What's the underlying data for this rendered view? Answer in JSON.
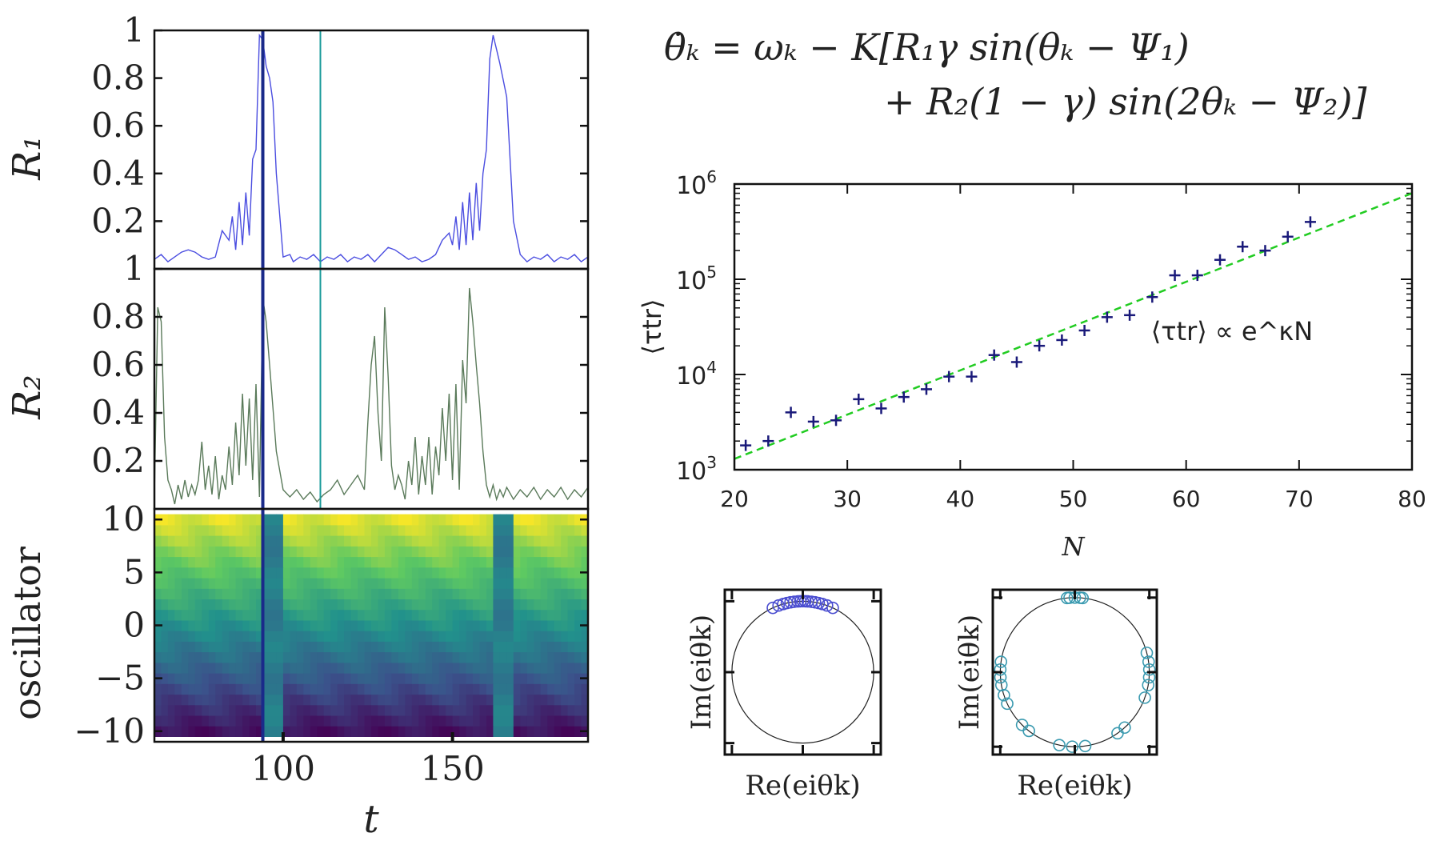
{
  "equation": {
    "line1": "θ̇ₖ = ωₖ − K[R₁γ sin(θₖ − Ψ₁)",
    "line2": "+ R₂(1 − γ) sin(2θₖ − Ψ₂)]"
  },
  "chart_data": [
    {
      "type": "line",
      "panel": "R1 time series",
      "xlabel": "",
      "ylabel": "R₁",
      "xlim": [
        62,
        190
      ],
      "ylim": [
        0,
        1
      ],
      "yticks": [
        {
          "v": 0.2,
          "label": "0.2"
        },
        {
          "v": 0.4,
          "label": "0.4"
        },
        {
          "v": 0.6,
          "label": "0.6"
        },
        {
          "v": 0.8,
          "label": "0.8"
        },
        {
          "v": 1.0,
          "label": "1"
        }
      ],
      "markers": [
        {
          "x": 94,
          "color": "#1a2a8a"
        },
        {
          "x": 111,
          "color": "#1a9a9a"
        }
      ],
      "series": [
        {
          "color": "#4a4de0",
          "x": [
            62,
            64,
            66,
            68,
            70,
            72,
            74,
            76,
            78,
            80,
            82,
            84,
            85,
            86,
            87,
            88,
            89,
            90,
            91,
            92,
            93,
            94,
            95,
            96,
            97,
            98,
            100,
            102,
            103,
            105,
            107,
            109,
            111,
            113,
            115,
            117,
            119,
            121,
            123,
            125,
            127,
            129,
            131,
            133,
            135,
            137,
            139,
            141,
            143,
            145,
            147,
            149,
            150,
            151,
            152,
            153,
            154,
            155,
            156,
            157,
            158,
            159,
            160,
            161,
            162,
            163,
            164,
            166,
            168,
            170,
            172,
            174,
            176,
            178,
            180,
            182,
            184,
            186,
            188,
            190
          ],
          "y": [
            0.04,
            0.06,
            0.03,
            0.05,
            0.07,
            0.08,
            0.07,
            0.05,
            0.04,
            0.05,
            0.16,
            0.12,
            0.22,
            0.08,
            0.28,
            0.1,
            0.32,
            0.14,
            0.46,
            0.5,
            0.98,
            0.96,
            0.85,
            0.8,
            0.7,
            0.4,
            0.05,
            0.06,
            0.03,
            0.05,
            0.04,
            0.06,
            0.03,
            0.05,
            0.04,
            0.06,
            0.03,
            0.05,
            0.04,
            0.06,
            0.03,
            0.06,
            0.09,
            0.08,
            0.06,
            0.04,
            0.05,
            0.03,
            0.04,
            0.06,
            0.12,
            0.15,
            0.1,
            0.22,
            0.08,
            0.28,
            0.1,
            0.32,
            0.12,
            0.36,
            0.16,
            0.4,
            0.5,
            0.88,
            0.98,
            0.92,
            0.86,
            0.72,
            0.2,
            0.06,
            0.03,
            0.05,
            0.04,
            0.06,
            0.03,
            0.05,
            0.04,
            0.06,
            0.03,
            0.05
          ]
        }
      ]
    },
    {
      "type": "line",
      "panel": "R2 time series",
      "xlabel": "",
      "ylabel": "R₂",
      "xlim": [
        62,
        190
      ],
      "ylim": [
        0,
        1
      ],
      "yticks": [
        {
          "v": 0.2,
          "label": "0.2"
        },
        {
          "v": 0.4,
          "label": "0.4"
        },
        {
          "v": 0.6,
          "label": "0.6"
        },
        {
          "v": 0.8,
          "label": "0.8"
        },
        {
          "v": 1.0,
          "label": "1"
        }
      ],
      "markers": [
        {
          "x": 94,
          "color": "#1a2a8a"
        },
        {
          "x": 111,
          "color": "#1a9a9a"
        }
      ],
      "series": [
        {
          "color": "#5a7a5a",
          "x": [
            62,
            63,
            64,
            65,
            66,
            67,
            68,
            69,
            70,
            71,
            72,
            73,
            74,
            75,
            76,
            77,
            78,
            79,
            80,
            81,
            82,
            83,
            84,
            85,
            86,
            87,
            88,
            89,
            90,
            91,
            92,
            93,
            94,
            95,
            96,
            97,
            98,
            100,
            102,
            104,
            106,
            108,
            110,
            112,
            114,
            116,
            118,
            120,
            122,
            124,
            125,
            126,
            127,
            128,
            129,
            130,
            131,
            132,
            133,
            134,
            135,
            136,
            137,
            138,
            139,
            140,
            141,
            142,
            143,
            144,
            145,
            146,
            147,
            148,
            149,
            150,
            151,
            152,
            153,
            154,
            155,
            156,
            157,
            158,
            159,
            160,
            161,
            162,
            163,
            164,
            165,
            166,
            168,
            170,
            172,
            174,
            176,
            178,
            180,
            182,
            184,
            186,
            188,
            190
          ],
          "y": [
            0.05,
            0.84,
            0.78,
            0.3,
            0.12,
            0.08,
            0.02,
            0.1,
            0.04,
            0.12,
            0.05,
            0.1,
            0.06,
            0.12,
            0.28,
            0.08,
            0.18,
            0.06,
            0.22,
            0.04,
            0.14,
            0.08,
            0.26,
            0.1,
            0.36,
            0.14,
            0.48,
            0.18,
            0.46,
            0.12,
            0.52,
            0.05,
            0.88,
            0.78,
            0.6,
            0.42,
            0.24,
            0.08,
            0.05,
            0.08,
            0.04,
            0.07,
            0.03,
            0.06,
            0.08,
            0.12,
            0.06,
            0.1,
            0.14,
            0.08,
            0.36,
            0.6,
            0.72,
            0.4,
            0.2,
            0.84,
            0.55,
            0.18,
            0.08,
            0.14,
            0.1,
            0.04,
            0.2,
            0.1,
            0.3,
            0.06,
            0.22,
            0.1,
            0.3,
            0.06,
            0.26,
            0.14,
            0.42,
            0.2,
            0.48,
            0.12,
            0.52,
            0.08,
            0.62,
            0.44,
            0.92,
            0.78,
            0.6,
            0.44,
            0.24,
            0.1,
            0.05,
            0.1,
            0.04,
            0.08,
            0.05,
            0.09,
            0.04,
            0.08,
            0.05,
            0.09,
            0.04,
            0.08,
            0.05,
            0.09,
            0.04,
            0.08,
            0.05,
            0.09
          ]
        }
      ]
    },
    {
      "type": "heatmap",
      "panel": "oscillator phases",
      "xlabel": "t",
      "ylabel": "oscillator",
      "xlim": [
        62,
        190
      ],
      "ylim": [
        -11,
        11
      ],
      "xticks": [
        {
          "v": 100,
          "label": "100"
        },
        {
          "v": 150,
          "label": "150"
        }
      ],
      "yticks": [
        {
          "v": -10,
          "label": "−10"
        },
        {
          "v": -5,
          "label": "−5"
        },
        {
          "v": 0,
          "label": "0"
        },
        {
          "v": 5,
          "label": "5"
        },
        {
          "v": 10,
          "label": "10"
        }
      ],
      "markers": [
        {
          "x": 94,
          "color": "#1a2a8a"
        }
      ],
      "colormap": [
        "#440154",
        "#3b528b",
        "#21918c",
        "#5ec962",
        "#fde725"
      ],
      "sync_bands": [
        {
          "from": 94,
          "to": 100
        },
        {
          "from": 162,
          "to": 168
        }
      ]
    },
    {
      "type": "scatter",
      "panel": "transient time vs N",
      "xlabel": "N",
      "ylabel": "⟨τtr⟩",
      "xlim": [
        20,
        80
      ],
      "ylim": [
        1000,
        1000000
      ],
      "yscale": "log",
      "xticks": [
        {
          "v": 20,
          "label": "20"
        },
        {
          "v": 30,
          "label": "30"
        },
        {
          "v": 40,
          "label": "40"
        },
        {
          "v": 50,
          "label": "50"
        },
        {
          "v": 60,
          "label": "60"
        },
        {
          "v": 70,
          "label": "70"
        },
        {
          "v": 80,
          "label": "80"
        }
      ],
      "yticks": [
        {
          "v": 1000,
          "base": "10",
          "exp": "3"
        },
        {
          "v": 10000,
          "base": "10",
          "exp": "4"
        },
        {
          "v": 100000,
          "base": "10",
          "exp": "5"
        },
        {
          "v": 1000000,
          "base": "10",
          "exp": "6"
        }
      ],
      "annotation": "⟨τtr⟩ ∝ e^κN",
      "marker_color": "#1a1a7a",
      "fit": {
        "color": "#22cc22",
        "x": [
          20,
          80
        ],
        "y": [
          1300,
          800000
        ]
      },
      "x": [
        21,
        23,
        25,
        27,
        29,
        31,
        33,
        35,
        37,
        39,
        41,
        43,
        45,
        47,
        49,
        51,
        53,
        55,
        57,
        59,
        61,
        63,
        65,
        67,
        69,
        71
      ],
      "y": [
        1800,
        2000,
        4000,
        3200,
        3300,
        5500,
        4400,
        5800,
        7000,
        9500,
        9500,
        16000,
        13500,
        20000,
        23000,
        29000,
        40000,
        42000,
        65000,
        110000,
        110000,
        160000,
        220000,
        200000,
        280000,
        400000
      ]
    },
    {
      "type": "scatter",
      "panel": "unit circle phases (clustered)",
      "xlabel": "Re(eiθk)",
      "ylabel": "Im(eiθk)",
      "xlim": [
        -1.15,
        1.15
      ],
      "ylim": [
        -1.15,
        1.15
      ],
      "marker_color": "#4a4dd0",
      "angles_deg": [
        65,
        70,
        74,
        77,
        80,
        83,
        86,
        88,
        90,
        92,
        94,
        97,
        100,
        103,
        106,
        110,
        115
      ]
    },
    {
      "type": "scatter",
      "panel": "unit circle phases (two-cluster)",
      "xlabel": "Re(eiθk)",
      "ylabel": "Im(eiθk)",
      "xlim": [
        -1.15,
        1.15
      ],
      "ylim": [
        -1.15,
        1.15
      ],
      "marker_color": "#3a9ab0",
      "angles_deg": [
        86,
        90,
        94,
        84,
        96,
        172,
        178,
        184,
        190,
        198,
        205,
        225,
        232,
        258,
        268,
        278,
        305,
        312,
        340,
        350,
        356,
        2,
        8,
        15
      ]
    }
  ]
}
